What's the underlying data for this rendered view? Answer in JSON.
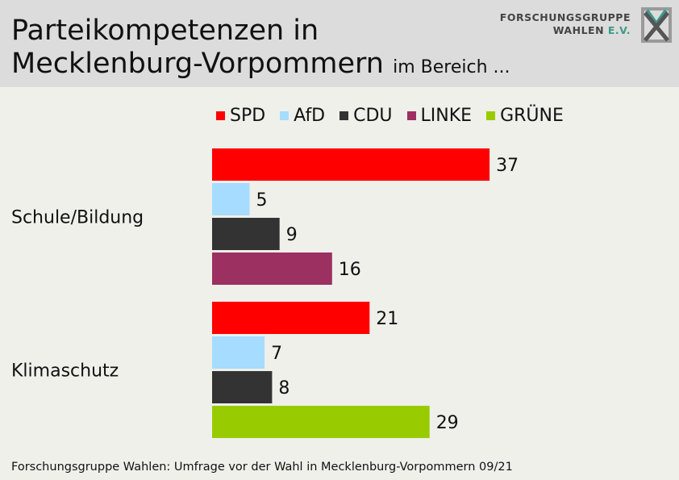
{
  "title_main": "Parteikompetenzen in",
  "title_line2": "Mecklenburg-Vorpommern",
  "title_sub": "im Bereich ...",
  "logo": {
    "line1": "FORSCHUNGSGRUPPE",
    "line2_a": "WAHLEN ",
    "line2_b": "E.V."
  },
  "footer": "Forschungsgruppe Wahlen: Umfrage vor der Wahl in Mecklenburg-Vorpommern 09/21",
  "colors": {
    "SPD": "#ff0000",
    "AfD": "#a6dcff",
    "CDU": "#333333",
    "LINKE": "#9b3061",
    "GRÜNE": "#99cc00"
  },
  "chart_data": {
    "type": "bar",
    "orientation": "horizontal",
    "legend": [
      "SPD",
      "AfD",
      "CDU",
      "LINKE",
      "GRÜNE"
    ],
    "legend_placement": "top",
    "grid": false,
    "xlim": [
      0,
      40
    ],
    "groups": [
      {
        "category": "Schule/Bildung",
        "bars": [
          {
            "party": "SPD",
            "value": 37
          },
          {
            "party": "AfD",
            "value": 5
          },
          {
            "party": "CDU",
            "value": 9
          },
          {
            "party": "LINKE",
            "value": 16
          }
        ]
      },
      {
        "category": "Klimaschutz",
        "bars": [
          {
            "party": "SPD",
            "value": 21
          },
          {
            "party": "AfD",
            "value": 7
          },
          {
            "party": "CDU",
            "value": 8
          },
          {
            "party": "GRÜNE",
            "value": 29
          }
        ]
      }
    ]
  }
}
